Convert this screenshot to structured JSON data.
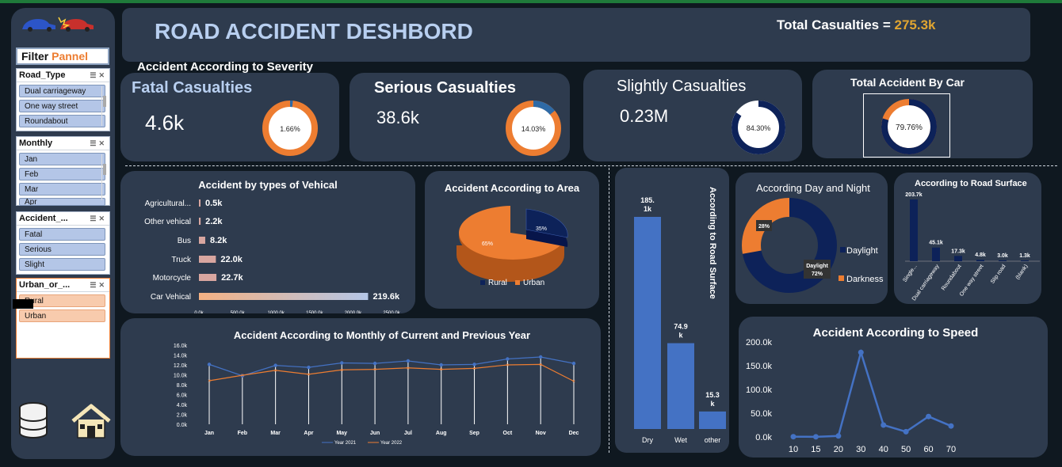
{
  "header": {
    "title": "ROAD ACCIDENT DESHBORD",
    "total_label": "Total Casualties =",
    "total_value": "275.3k"
  },
  "filter": {
    "title_a": "Filter",
    "title_b": "Pannel",
    "slicers": [
      {
        "label": "Road_Type",
        "items": [
          "Dual carriageway",
          "One way street",
          "Roundabout"
        ],
        "style": "blue"
      },
      {
        "label": "Monthly",
        "items": [
          "Jan",
          "Feb",
          "Mar",
          "Apr"
        ],
        "style": "blue"
      },
      {
        "label": "Accident_...",
        "items": [
          "Fatal",
          "Serious",
          "Slight"
        ],
        "style": "blue"
      },
      {
        "label": "Urban_or_...",
        "items": [
          "Rural",
          "Urban"
        ],
        "style": "orange"
      }
    ]
  },
  "severity_heading": "Accident According to Severity",
  "kpis": {
    "fatal": {
      "label": "Fatal Casualties",
      "value": "4.6k",
      "pct_label": "1.66%",
      "pct": 1.66
    },
    "serious": {
      "label": "Serious Casualties",
      "value": "38.6k",
      "pct_label": "14.03%",
      "pct": 14.03
    },
    "slight": {
      "label": "Slightly Casualties",
      "value": "0.23M",
      "pct_label": "84.30%",
      "pct": 84.3
    },
    "car": {
      "label": "Total Accident By Car",
      "pct_label": "79.76%",
      "pct": 79.76
    }
  },
  "colors": {
    "orange": "#ed7d31",
    "navy": "#0d2259",
    "steel": "#2e6aa6",
    "bar_blue": "#4472c4",
    "panel": "#2e3b4e"
  },
  "vehicle_chart": {
    "title": "Accident by types of Vehical",
    "ticks": [
      "0.0k",
      "500.0k",
      "1000.0k",
      "1500.0k",
      "2000.0k",
      "2500.0k"
    ],
    "chart_data": {
      "type": "bar",
      "categories": [
        "Agricultural...",
        "Other vehical",
        "Bus",
        "Truck",
        "Motorcycle",
        "Car Vehical"
      ],
      "values": [
        0.5,
        2.2,
        8.2,
        22.0,
        22.7,
        219.6
      ],
      "labels": [
        "0.5k",
        "2.2k",
        "8.2k",
        "22.0k",
        "22.7k",
        "219.6k"
      ]
    }
  },
  "area_chart": {
    "title": "Accident According to Area",
    "chart_data": {
      "type": "pie",
      "categories": [
        "Rural",
        "Urban"
      ],
      "values": [
        35,
        65
      ],
      "labels": [
        "35%",
        "65%"
      ]
    }
  },
  "surface_bar_chart": {
    "title": "According to Road Surface",
    "chart_data": {
      "type": "bar",
      "categories": [
        "Dry",
        "Wet",
        "other"
      ],
      "values": [
        185.1,
        74.9,
        15.3
      ],
      "labels": [
        "185.\n1k",
        "74.9\nk",
        "15.3\nk"
      ]
    }
  },
  "daynight_chart": {
    "title": "According Day and Night",
    "chart_data": {
      "type": "pie",
      "categories": [
        "Daylight",
        "Darkness"
      ],
      "values": [
        72,
        28
      ],
      "labels": [
        "72%",
        "28%"
      ]
    }
  },
  "road_surface_chart": {
    "title": "According to Road Surface",
    "chart_data": {
      "type": "bar",
      "categories": [
        "Single...",
        "Dual carriageway",
        "Roundabout",
        "One way street",
        "Slip road",
        "(blank)"
      ],
      "values": [
        203.7,
        45.1,
        17.3,
        4.8,
        3.0,
        1.3
      ],
      "labels": [
        "203.7k",
        "45.1k",
        "17.3k",
        "4.8k",
        "3.0k",
        "1.3k"
      ]
    }
  },
  "monthly_chart": {
    "title": "Accident According to Monthly of Current and Previous Year",
    "y_ticks": [
      "0.0k",
      "2.0k",
      "4.0k",
      "6.0k",
      "8.0k",
      "10.0k",
      "12.0k",
      "14.0k",
      "16.0k"
    ],
    "chart_data": {
      "type": "line",
      "categories": [
        "Jan",
        "Feb",
        "Mar",
        "Apr",
        "May",
        "Jun",
        "Jul",
        "Aug",
        "Sep",
        "Oct",
        "Nov",
        "Dec"
      ],
      "ylim": [
        0,
        16
      ],
      "series": [
        {
          "name": "Year 2021",
          "values": [
            12.1,
            9.8,
            11.9,
            11.5,
            12.4,
            12.3,
            12.8,
            12.0,
            12.1,
            13.2,
            13.6,
            12.3
          ]
        },
        {
          "name": "Year 2022",
          "values": [
            8.8,
            9.9,
            10.9,
            10.1,
            11.0,
            11.1,
            11.4,
            11.1,
            11.3,
            12.0,
            12.1,
            8.7
          ]
        }
      ]
    }
  },
  "speed_chart": {
    "title": "Accident According to Speed",
    "y_ticks": [
      "0.0k",
      "50.0k",
      "100.0k",
      "150.0k",
      "200.0k"
    ],
    "chart_data": {
      "type": "line",
      "x": [
        10,
        15,
        20,
        30,
        40,
        50,
        60,
        70
      ],
      "categories": [
        "10",
        "15",
        "20",
        "30",
        "40",
        "50",
        "60",
        "70"
      ],
      "values": [
        0.5,
        0.3,
        2.0,
        178.0,
        25.0,
        11.0,
        43.0,
        23.0
      ],
      "ylim": [
        0,
        200
      ]
    }
  }
}
